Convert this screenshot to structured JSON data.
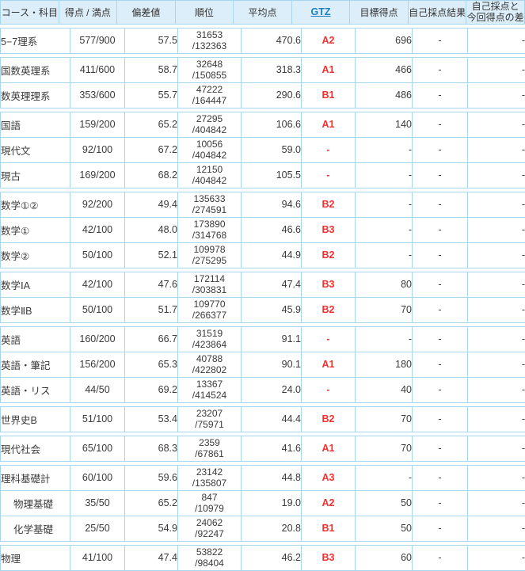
{
  "colors": {
    "grid_border": "#a7d6ef",
    "header_bg": "#dceef9",
    "label_column_bg": "#eeeeee",
    "gtz_red": "#f42f2f",
    "gtz_link_blue": "#1d7fc0"
  },
  "table": {
    "columns": [
      {
        "label": "コース・科目"
      },
      {
        "label": "得点 / 満点"
      },
      {
        "label": "偏差値"
      },
      {
        "label": "順位"
      },
      {
        "label": "平均点"
      },
      {
        "label": "GTZ",
        "link": true
      },
      {
        "label": "目標得点"
      },
      {
        "label": "自己採点結果"
      },
      {
        "label": "自己採点と\n今回得点の差"
      }
    ],
    "groups": [
      {
        "rows": [
          {
            "subject": "5−7理系",
            "score": "577/900",
            "dev": "57.5",
            "rank": "31653",
            "rank_total": "/132363",
            "avg": "470.6",
            "gtz": "A2",
            "target": "696",
            "self": "-",
            "diff": "-"
          }
        ]
      },
      {
        "rows": [
          {
            "subject": "国数英理系",
            "score": "411/600",
            "dev": "58.7",
            "rank": "32648",
            "rank_total": "/150855",
            "avg": "318.3",
            "gtz": "A1",
            "target": "466",
            "self": "-",
            "diff": "-"
          },
          {
            "subject": "数英理理系",
            "score": "353/600",
            "dev": "55.7",
            "rank": "47222",
            "rank_total": "/164447",
            "avg": "290.6",
            "gtz": "B1",
            "target": "486",
            "self": "-",
            "diff": "-"
          }
        ]
      },
      {
        "rows": [
          {
            "subject": "国語",
            "score": "159/200",
            "dev": "65.2",
            "rank": "27295",
            "rank_total": "/404842",
            "avg": "106.6",
            "gtz": "A1",
            "target": "140",
            "self": "-",
            "diff": "-"
          },
          {
            "subject": "現代文",
            "score": "92/100",
            "dev": "67.2",
            "rank": "10056",
            "rank_total": "/404842",
            "avg": "59.0",
            "gtz": "-",
            "target": "-",
            "self": "-",
            "diff": "-"
          },
          {
            "subject": "現古",
            "score": "169/200",
            "dev": "68.2",
            "rank": "12150",
            "rank_total": "/404842",
            "avg": "105.5",
            "gtz": "-",
            "target": "-",
            "self": "-",
            "diff": "-"
          }
        ]
      },
      {
        "rows": [
          {
            "subject": "数学①②",
            "score": "92/200",
            "dev": "49.4",
            "rank": "135633",
            "rank_total": "/274591",
            "avg": "94.6",
            "gtz": "B2",
            "target": "-",
            "self": "-",
            "diff": "-"
          },
          {
            "subject": "数学①",
            "score": "42/100",
            "dev": "48.0",
            "rank": "173890",
            "rank_total": "/314768",
            "avg": "46.6",
            "gtz": "B3",
            "target": "-",
            "self": "-",
            "diff": "-"
          },
          {
            "subject": "数学②",
            "score": "50/100",
            "dev": "52.1",
            "rank": "109978",
            "rank_total": "/275295",
            "avg": "44.9",
            "gtz": "B2",
            "target": "-",
            "self": "-",
            "diff": "-"
          }
        ]
      },
      {
        "rows": [
          {
            "subject": "数学ⅠA",
            "score": "42/100",
            "dev": "47.6",
            "rank": "172114",
            "rank_total": "/303831",
            "avg": "47.4",
            "gtz": "B3",
            "target": "80",
            "self": "-",
            "diff": "-"
          },
          {
            "subject": "数学ⅡB",
            "score": "50/100",
            "dev": "51.7",
            "rank": "109770",
            "rank_total": "/266377",
            "avg": "45.9",
            "gtz": "B2",
            "target": "70",
            "self": "-",
            "diff": "-"
          }
        ]
      },
      {
        "rows": [
          {
            "subject": "英語",
            "score": "160/200",
            "dev": "66.7",
            "rank": "31519",
            "rank_total": "/423864",
            "avg": "91.1",
            "gtz": "-",
            "target": "-",
            "self": "-",
            "diff": "-"
          },
          {
            "subject": "英語・筆記",
            "score": "156/200",
            "dev": "65.3",
            "rank": "40788",
            "rank_total": "/422802",
            "avg": "90.1",
            "gtz": "A1",
            "target": "180",
            "self": "-",
            "diff": "-"
          },
          {
            "subject": "英語・リス",
            "score": "44/50",
            "dev": "69.2",
            "rank": "13367",
            "rank_total": "/414524",
            "avg": "24.0",
            "gtz": "-",
            "target": "40",
            "self": "-",
            "diff": "-"
          }
        ]
      },
      {
        "rows": [
          {
            "subject": "世界史B",
            "score": "51/100",
            "dev": "53.4",
            "rank": "23207",
            "rank_total": "/75971",
            "avg": "44.4",
            "gtz": "B2",
            "target": "70",
            "self": "-",
            "diff": "-"
          }
        ]
      },
      {
        "rows": [
          {
            "subject": "現代社会",
            "score": "65/100",
            "dev": "68.3",
            "rank": "2359",
            "rank_total": "/67861",
            "avg": "41.6",
            "gtz": "A1",
            "target": "70",
            "self": "-",
            "diff": "-"
          }
        ]
      },
      {
        "rows": [
          {
            "subject": "理科基礎計",
            "score": "60/100",
            "dev": "59.6",
            "rank": "23142",
            "rank_total": "/135807",
            "avg": "44.8",
            "gtz": "A3",
            "target": "-",
            "self": "-",
            "diff": "-"
          },
          {
            "subject": "物理基礎",
            "indent": true,
            "score": "35/50",
            "dev": "65.2",
            "rank": "847",
            "rank_total": "/10979",
            "avg": "19.0",
            "gtz": "A2",
            "target": "50",
            "self": "-",
            "diff": "-"
          },
          {
            "subject": "化学基礎",
            "indent": true,
            "score": "25/50",
            "dev": "54.9",
            "rank": "24062",
            "rank_total": "/92247",
            "avg": "20.8",
            "gtz": "B1",
            "target": "50",
            "self": "-",
            "diff": "-"
          }
        ]
      },
      {
        "rows": [
          {
            "subject": "物理",
            "score": "41/100",
            "dev": "47.4",
            "rank": "53822",
            "rank_total": "/98404",
            "avg": "46.2",
            "gtz": "B3",
            "target": "60",
            "self": "-",
            "diff": "-"
          }
        ]
      }
    ]
  }
}
